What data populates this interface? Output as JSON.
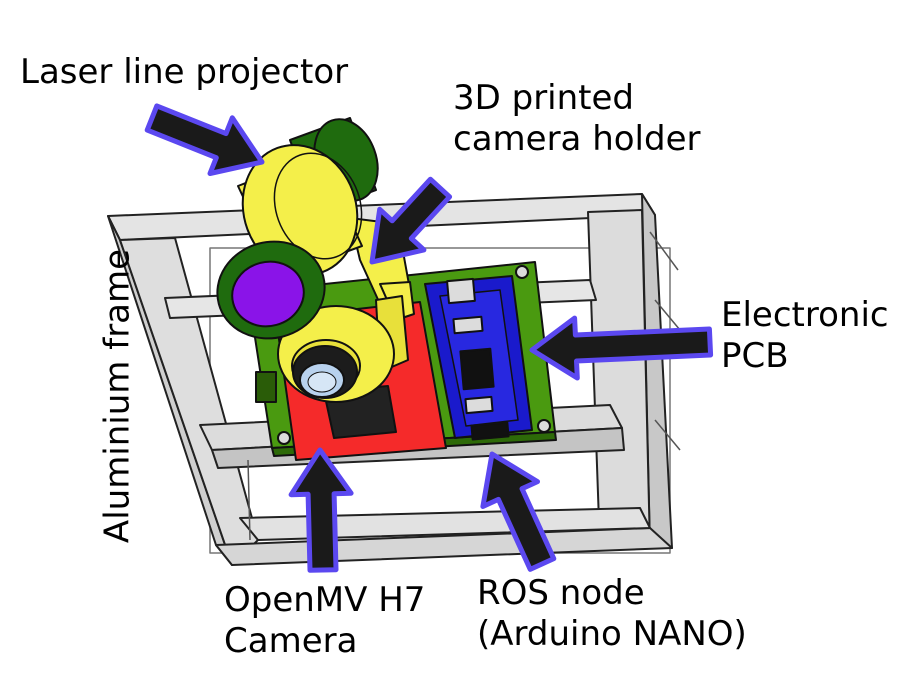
{
  "labels": {
    "laser": "Laser line projector",
    "holder_line1": "3D printed",
    "holder_line2": "camera holder",
    "pcb_line1": "Electronic",
    "pcb_line2": "PCB",
    "camera_line1": "OpenMV H7",
    "camera_line2": "Camera",
    "ros_line1": "ROS node",
    "ros_line2": "(Arduino NANO)",
    "frame": "Aluminium frame"
  },
  "colors": {
    "arrow_fill": "#1a1a1a",
    "arrow_outline": "#5b48f0",
    "frame": "#d2d2d2",
    "pcb_green": "#4a9a10",
    "camera_board": "#f52a2a",
    "nano_blue": "#1a1acc",
    "holder_yellow": "#f4ef4a",
    "projector_green": "#1f6b0e",
    "lens_purple": "#8a14e8",
    "lens_glass": "#b8d2ee"
  }
}
